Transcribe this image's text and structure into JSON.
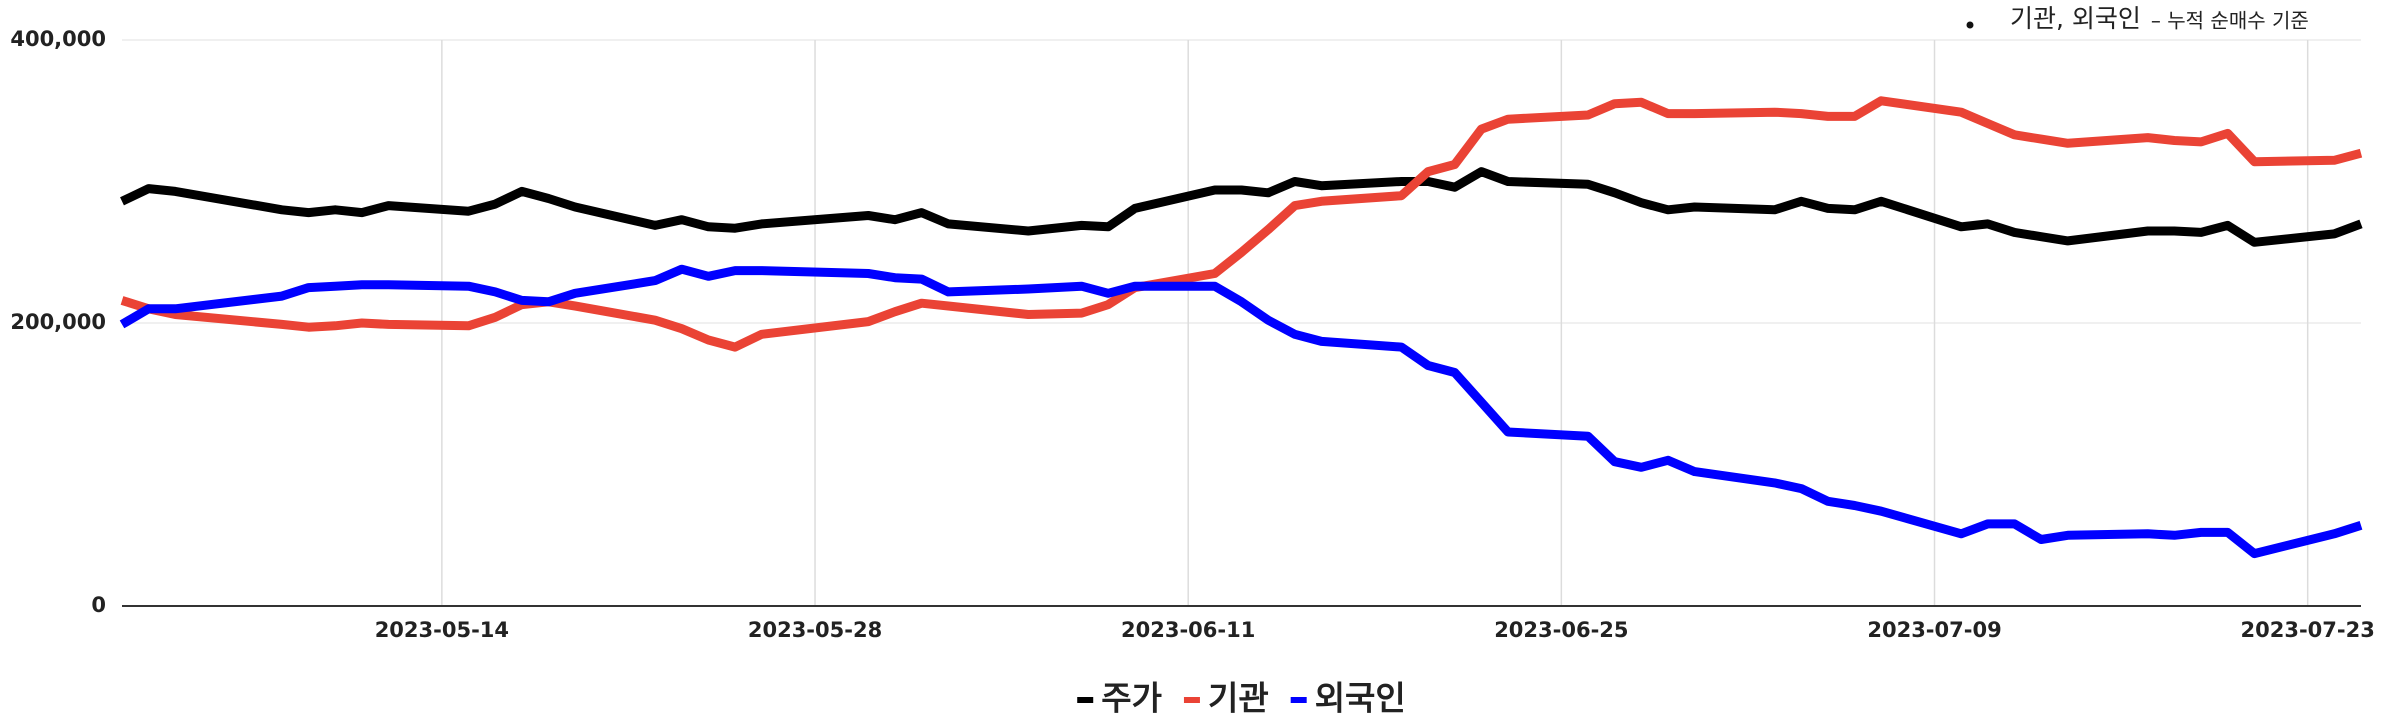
{
  "chart_data": {
    "type": "line",
    "note_main": "기관, 외국인",
    "note_sub": "– 누적 순매수 기준",
    "x": [
      "2023-05-02",
      "2023-05-03",
      "2023-05-04",
      "2023-05-08",
      "2023-05-09",
      "2023-05-10",
      "2023-05-11",
      "2023-05-12",
      "2023-05-15",
      "2023-05-16",
      "2023-05-17",
      "2023-05-18",
      "2023-05-19",
      "2023-05-22",
      "2023-05-23",
      "2023-05-24",
      "2023-05-25",
      "2023-05-26",
      "2023-05-30",
      "2023-05-31",
      "2023-06-01",
      "2023-06-02",
      "2023-06-05",
      "2023-06-07",
      "2023-06-08",
      "2023-06-09",
      "2023-06-12",
      "2023-06-13",
      "2023-06-14",
      "2023-06-15",
      "2023-06-16",
      "2023-06-19",
      "2023-06-20",
      "2023-06-21",
      "2023-06-22",
      "2023-06-23",
      "2023-06-26",
      "2023-06-27",
      "2023-06-28",
      "2023-06-29",
      "2023-06-30",
      "2023-07-03",
      "2023-07-04",
      "2023-07-05",
      "2023-07-06",
      "2023-07-07",
      "2023-07-10",
      "2023-07-11",
      "2023-07-12",
      "2023-07-13",
      "2023-07-14",
      "2023-07-17",
      "2023-07-18",
      "2023-07-19",
      "2023-07-20",
      "2023-07-21",
      "2023-07-24",
      "2023-07-25"
    ],
    "series": [
      {
        "name": "주가",
        "color": "#000000",
        "values": [
          286000,
          295000,
          293000,
          280000,
          278000,
          280000,
          278000,
          283000,
          279000,
          284000,
          293000,
          288000,
          282000,
          269000,
          273000,
          268000,
          267000,
          270000,
          276000,
          273000,
          278000,
          270000,
          265000,
          269000,
          268000,
          281000,
          294000,
          294000,
          292000,
          300000,
          297000,
          300000,
          300000,
          296000,
          307000,
          300000,
          298000,
          292000,
          285000,
          280000,
          282000,
          280000,
          286000,
          281000,
          280000,
          286000,
          268000,
          270000,
          264000,
          261000,
          258000,
          265000,
          265000,
          264000,
          269000,
          257000,
          263000,
          270000
        ]
      },
      {
        "name": "기관",
        "color": "#ea4335",
        "values": [
          216000,
          210000,
          206000,
          199000,
          197000,
          198000,
          200000,
          199000,
          198000,
          204000,
          213000,
          215000,
          212000,
          202000,
          196000,
          188000,
          183000,
          192000,
          201000,
          208000,
          214000,
          212000,
          206000,
          207000,
          213000,
          225000,
          235000,
          250000,
          266000,
          283000,
          286000,
          290000,
          307000,
          312000,
          337000,
          344000,
          347000,
          355000,
          356000,
          348000,
          348000,
          349000,
          348000,
          346000,
          346000,
          357000,
          349000,
          341000,
          333000,
          330000,
          327000,
          331000,
          329000,
          328000,
          334000,
          314000,
          315000,
          320000
        ]
      },
      {
        "name": "외국인",
        "color": "#0000ff",
        "values": [
          199000,
          210000,
          210000,
          219000,
          225000,
          226000,
          227000,
          227000,
          226000,
          222000,
          216000,
          215000,
          221000,
          230000,
          238000,
          233000,
          237000,
          237000,
          235000,
          232000,
          231000,
          222000,
          224000,
          226000,
          221000,
          226000,
          226000,
          215000,
          202000,
          192000,
          187000,
          183000,
          170000,
          165000,
          144000,
          123000,
          120000,
          102000,
          98000,
          103000,
          95000,
          87000,
          83000,
          74000,
          71000,
          67000,
          51000,
          58000,
          58000,
          47000,
          50000,
          51000,
          50000,
          52000,
          52000,
          37000,
          51000,
          57000
        ]
      }
    ],
    "xlim": [
      "2023-05-02",
      "2023-07-25"
    ],
    "xticks": [
      "2023-05-14",
      "2023-05-28",
      "2023-06-11",
      "2023-06-25",
      "2023-07-09",
      "2023-07-23"
    ],
    "ylim": [
      0,
      400000
    ],
    "yticks": [
      0,
      {
        "value": 200000,
        "label": "200,000"
      },
      {
        "value": 400000,
        "label": "400,000"
      }
    ],
    "grid": true,
    "legend": "bottom"
  }
}
